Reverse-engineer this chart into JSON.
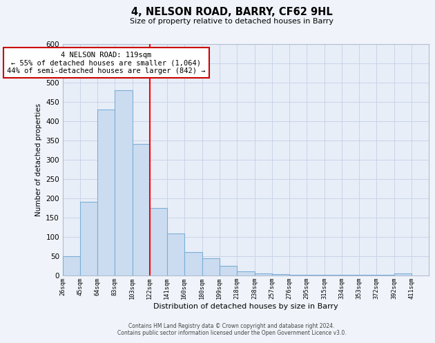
{
  "title": "4, NELSON ROAD, BARRY, CF62 9HL",
  "subtitle": "Size of property relative to detached houses in Barry",
  "xlabel": "Distribution of detached houses by size in Barry",
  "ylabel": "Number of detached properties",
  "bin_labels": [
    "26sqm",
    "45sqm",
    "64sqm",
    "83sqm",
    "103sqm",
    "122sqm",
    "141sqm",
    "160sqm",
    "180sqm",
    "199sqm",
    "218sqm",
    "238sqm",
    "257sqm",
    "276sqm",
    "295sqm",
    "315sqm",
    "334sqm",
    "353sqm",
    "372sqm",
    "392sqm",
    "411sqm"
  ],
  "bin_edges": [
    26,
    45,
    64,
    83,
    103,
    122,
    141,
    160,
    180,
    199,
    218,
    238,
    257,
    276,
    295,
    315,
    334,
    353,
    372,
    392,
    411
  ],
  "bar_heights": [
    50,
    190,
    430,
    480,
    340,
    175,
    108,
    60,
    44,
    25,
    10,
    5,
    3,
    2,
    1,
    1,
    1,
    1,
    1,
    5
  ],
  "bar_color": "#ccdcf0",
  "bar_edge_color": "#7aaed6",
  "reference_line_x": 122,
  "reference_line_color": "red",
  "annotation_line1": "4 NELSON ROAD: 119sqm",
  "annotation_line2": "← 55% of detached houses are smaller (1,064)",
  "annotation_line3": "44% of semi-detached houses are larger (842) →",
  "annotation_box_color": "white",
  "annotation_box_edge_color": "#cc0000",
  "ylim": [
    0,
    600
  ],
  "yticks": [
    0,
    50,
    100,
    150,
    200,
    250,
    300,
    350,
    400,
    450,
    500,
    550,
    600
  ],
  "footer_line1": "Contains HM Land Registry data © Crown copyright and database right 2024.",
  "footer_line2": "Contains public sector information licensed under the Open Government Licence v3.0.",
  "bg_color": "#f0f4fa",
  "grid_color": "#c8d4e8",
  "plot_bg_color": "#e8eef8"
}
